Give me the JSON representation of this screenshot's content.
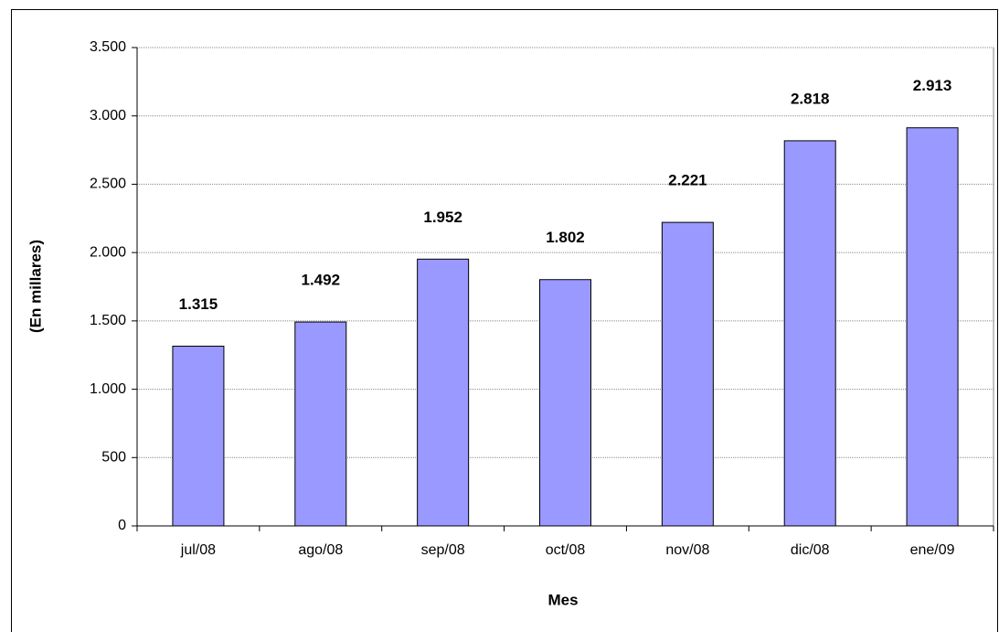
{
  "chart_data": {
    "type": "bar",
    "x_label": "Mes",
    "y_label": "(En millares)",
    "categories": [
      "jul/08",
      "ago/08",
      "sep/08",
      "oct/08",
      "nov/08",
      "dic/08",
      "ene/09"
    ],
    "values": [
      1315,
      1492,
      1952,
      1802,
      2221,
      2818,
      2913
    ],
    "value_labels": [
      "1.315",
      "1.492",
      "1.952",
      "1.802",
      "2.221",
      "2.818",
      "2.913"
    ],
    "color": "#9999ff",
    "ylim": [
      0,
      3500
    ],
    "yticks": [
      0,
      500,
      {
        "value": 1000,
        "label": "1.000"
      },
      {
        "value": 1500,
        "label": "1.500"
      },
      {
        "value": 2000,
        "label": "2.000"
      },
      {
        "value": 2500,
        "label": "2.500"
      },
      {
        "value": 3000,
        "label": "3.000"
      },
      {
        "value": 3500,
        "label": "3.500"
      }
    ],
    "grid": true
  }
}
